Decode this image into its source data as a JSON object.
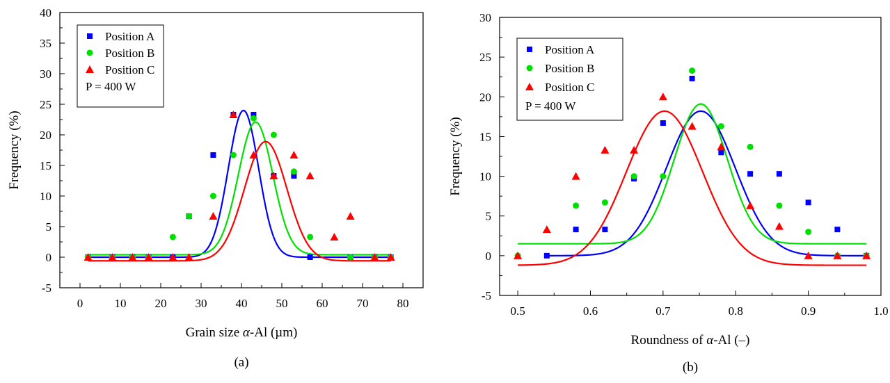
{
  "chart_data": [
    {
      "type": "scatter",
      "panel_caption": "(a)",
      "xlabel_prefix": "Grain size ",
      "xlabel_symbol": "α",
      "xlabel_suffix": "-Al (µm)",
      "ylabel": "Frequency (%)",
      "xlim": [
        -5,
        85
      ],
      "ylim": [
        -5,
        40
      ],
      "xticks": [
        0,
        10,
        20,
        30,
        40,
        50,
        60,
        70,
        80
      ],
      "xtick_labels": [
        "0",
        "10",
        "20",
        "30",
        "40",
        "50",
        "60",
        "70",
        "80"
      ],
      "yticks": [
        -5,
        0,
        5,
        10,
        15,
        20,
        25,
        30,
        35,
        40
      ],
      "ytick_labels": [
        "-5",
        "0",
        "5",
        "10",
        "15",
        "20",
        "25",
        "30",
        "35",
        "40"
      ],
      "legend_position": "top-left",
      "annotation": "P = 400 W",
      "series": [
        {
          "name": "Position A",
          "color": "#0000ff",
          "marker": "square",
          "points": [
            [
              2,
              0
            ],
            [
              8,
              0
            ],
            [
              13,
              0
            ],
            [
              17,
              0
            ],
            [
              23,
              0
            ],
            [
              27,
              6.7
            ],
            [
              33,
              16.7
            ],
            [
              38,
              23.3
            ],
            [
              43,
              23.3
            ],
            [
              48,
              13.3
            ],
            [
              53,
              13.3
            ],
            [
              57,
              0
            ],
            [
              67,
              0
            ],
            [
              73,
              0
            ],
            [
              77,
              0
            ]
          ],
          "fit": {
            "type": "gaussian",
            "y0": 0,
            "A": 24,
            "xc": 40.5,
            "w": 7.5
          }
        },
        {
          "name": "Position B",
          "color": "#00e000",
          "marker": "circle",
          "points": [
            [
              2,
              0
            ],
            [
              8,
              0
            ],
            [
              13,
              0
            ],
            [
              17,
              0
            ],
            [
              23,
              3.3
            ],
            [
              27,
              6.7
            ],
            [
              33,
              10
            ],
            [
              38,
              16.7
            ],
            [
              43,
              22.7
            ],
            [
              48,
              20
            ],
            [
              53,
              14
            ],
            [
              57,
              3.3
            ],
            [
              67,
              0
            ],
            [
              73,
              0
            ],
            [
              77,
              0
            ]
          ],
          "fit": {
            "type": "gaussian",
            "y0": 0.4,
            "A": 21.7,
            "xc": 43.5,
            "w": 8.5
          }
        },
        {
          "name": "Position C",
          "color": "#ff0000",
          "marker": "triangle",
          "points": [
            [
              2,
              0
            ],
            [
              8,
              0
            ],
            [
              13,
              0
            ],
            [
              17,
              0
            ],
            [
              23,
              0
            ],
            [
              27,
              0
            ],
            [
              33,
              6.7
            ],
            [
              38,
              23.3
            ],
            [
              43,
              16.7
            ],
            [
              48,
              13.3
            ],
            [
              53,
              16.7
            ],
            [
              57,
              13.3
            ],
            [
              63,
              3.3
            ],
            [
              67,
              6.7
            ],
            [
              73,
              0
            ],
            [
              77,
              0
            ]
          ],
          "fit": {
            "type": "gaussian",
            "y0": -0.6,
            "A": 19.5,
            "xc": 46,
            "w": 10.5
          }
        }
      ]
    },
    {
      "type": "scatter",
      "panel_caption": "(b)",
      "xlabel_prefix": "Roundness of ",
      "xlabel_symbol": "α",
      "xlabel_suffix": "-Al (–)",
      "ylabel": "Frequency (%)",
      "xlim": [
        0.475,
        1.0
      ],
      "ylim": [
        -5,
        30
      ],
      "xticks": [
        0.5,
        0.6,
        0.7,
        0.8,
        0.9,
        1.0
      ],
      "xtick_labels": [
        "0.5",
        "0.6",
        "0.7",
        "0.8",
        "0.9",
        "1.0"
      ],
      "yticks": [
        -5,
        0,
        5,
        10,
        15,
        20,
        25,
        30
      ],
      "ytick_labels": [
        "-5",
        "0",
        "5",
        "10",
        "15",
        "20",
        "25",
        "30"
      ],
      "legend_position": "top-left",
      "annotation": "P = 400 W",
      "series": [
        {
          "name": "Position A",
          "color": "#0000ff",
          "marker": "square",
          "points": [
            [
              0.54,
              0
            ],
            [
              0.58,
              3.3
            ],
            [
              0.62,
              3.3
            ],
            [
              0.66,
              9.7
            ],
            [
              0.7,
              16.7
            ],
            [
              0.74,
              22.3
            ],
            [
              0.78,
              13
            ],
            [
              0.82,
              10.3
            ],
            [
              0.86,
              10.3
            ],
            [
              0.9,
              6.7
            ],
            [
              0.94,
              3.3
            ],
            [
              0.98,
              0
            ]
          ],
          "fit": {
            "type": "gaussian",
            "y0": 0,
            "A": 18.2,
            "xc": 0.752,
            "w": 0.095
          }
        },
        {
          "name": "Position B",
          "color": "#00e000",
          "marker": "circle",
          "points": [
            [
              0.5,
              0
            ],
            [
              0.58,
              6.3
            ],
            [
              0.62,
              6.7
            ],
            [
              0.66,
              10
            ],
            [
              0.7,
              10
            ],
            [
              0.74,
              23.3
            ],
            [
              0.78,
              16.3
            ],
            [
              0.82,
              13.7
            ],
            [
              0.86,
              6.3
            ],
            [
              0.9,
              3
            ],
            [
              0.94,
              0
            ],
            [
              0.98,
              0
            ]
          ],
          "fit": {
            "type": "gaussian",
            "y0": 1.5,
            "A": 17.6,
            "xc": 0.752,
            "w": 0.073
          }
        },
        {
          "name": "Position C",
          "color": "#ff0000",
          "marker": "triangle",
          "points": [
            [
              0.5,
              0
            ],
            [
              0.54,
              3.3
            ],
            [
              0.58,
              10
            ],
            [
              0.62,
              13.3
            ],
            [
              0.66,
              13.3
            ],
            [
              0.7,
              20
            ],
            [
              0.74,
              16.3
            ],
            [
              0.78,
              13.7
            ],
            [
              0.82,
              6.3
            ],
            [
              0.86,
              3.7
            ],
            [
              0.9,
              0
            ],
            [
              0.94,
              0
            ],
            [
              0.98,
              0
            ]
          ],
          "fit": {
            "type": "gaussian",
            "y0": -1.2,
            "A": 19.4,
            "xc": 0.702,
            "w": 0.105
          }
        }
      ]
    }
  ]
}
